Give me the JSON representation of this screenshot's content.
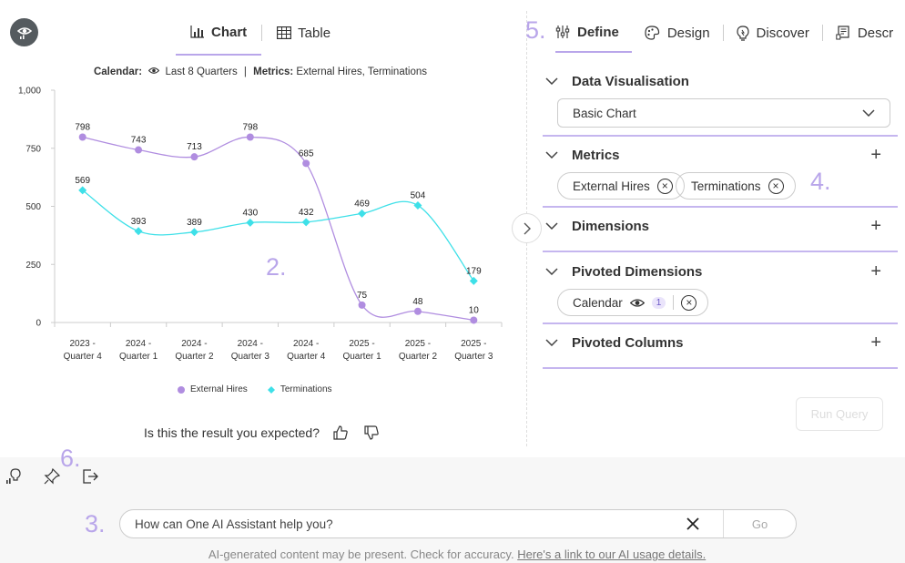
{
  "view_tabs": [
    {
      "label": "Chart"
    },
    {
      "label": "Table"
    }
  ],
  "subtitle": {
    "calendar_label": "Calendar:",
    "calendar_value": "Last 8 Quarters",
    "metrics_label": "Metrics:",
    "metrics_value": "External Hires, Terminations"
  },
  "chart_data": {
    "type": "line",
    "categories": [
      "2023 - Quarter 4",
      "2024 - Quarter 1",
      "2024 - Quarter 2",
      "2024 - Quarter 3",
      "2024 - Quarter 4",
      "2025 - Quarter 1",
      "2025 - Quarter 2",
      "2025 - Quarter 3"
    ],
    "series": [
      {
        "name": "External Hires",
        "color": "#b08de0",
        "marker": "circle",
        "values": [
          798,
          743,
          713,
          798,
          685,
          75,
          48,
          10
        ]
      },
      {
        "name": "Terminations",
        "color": "#3ee0e8",
        "marker": "diamond",
        "values": [
          569,
          393,
          389,
          430,
          432,
          469,
          504,
          179
        ]
      }
    ],
    "ylim": [
      0,
      1000
    ],
    "yticks": [
      0,
      250,
      500,
      750,
      1000
    ],
    "ytick_labels": [
      "0",
      "250",
      "500",
      "750",
      "1,000"
    ],
    "legend": "bottom",
    "grid": false
  },
  "feedback": {
    "question": "Is this the result you expected?"
  },
  "annotations": {
    "a2": "2.",
    "a3": "3.",
    "a4": "4.",
    "a5": "5.",
    "a6": "6."
  },
  "right_tabs": [
    {
      "label": "Define"
    },
    {
      "label": "Design"
    },
    {
      "label": "Discover"
    },
    {
      "label": "Descr"
    }
  ],
  "sections": {
    "data_vis": {
      "title": "Data Visualisation",
      "select_value": "Basic Chart"
    },
    "metrics": {
      "title": "Metrics",
      "chips": [
        "External Hires",
        "Terminations"
      ]
    },
    "dimensions": {
      "title": "Dimensions"
    },
    "pivoted_dimensions": {
      "title": "Pivoted Dimensions",
      "chip": "Calendar",
      "badge": "1"
    },
    "pivoted_columns": {
      "title": "Pivoted Columns"
    }
  },
  "run_query": "Run Query",
  "assistant": {
    "placeholder": "How can One AI Assistant help you?",
    "go": "Go"
  },
  "disclaimer": {
    "text": "AI-generated content may be present. Check for accuracy. ",
    "link": "Here's a link to our AI usage details."
  },
  "colors": {
    "accent": "#b9a6ea",
    "external_hires": "#b08de0",
    "terminations": "#3ee0e8"
  }
}
